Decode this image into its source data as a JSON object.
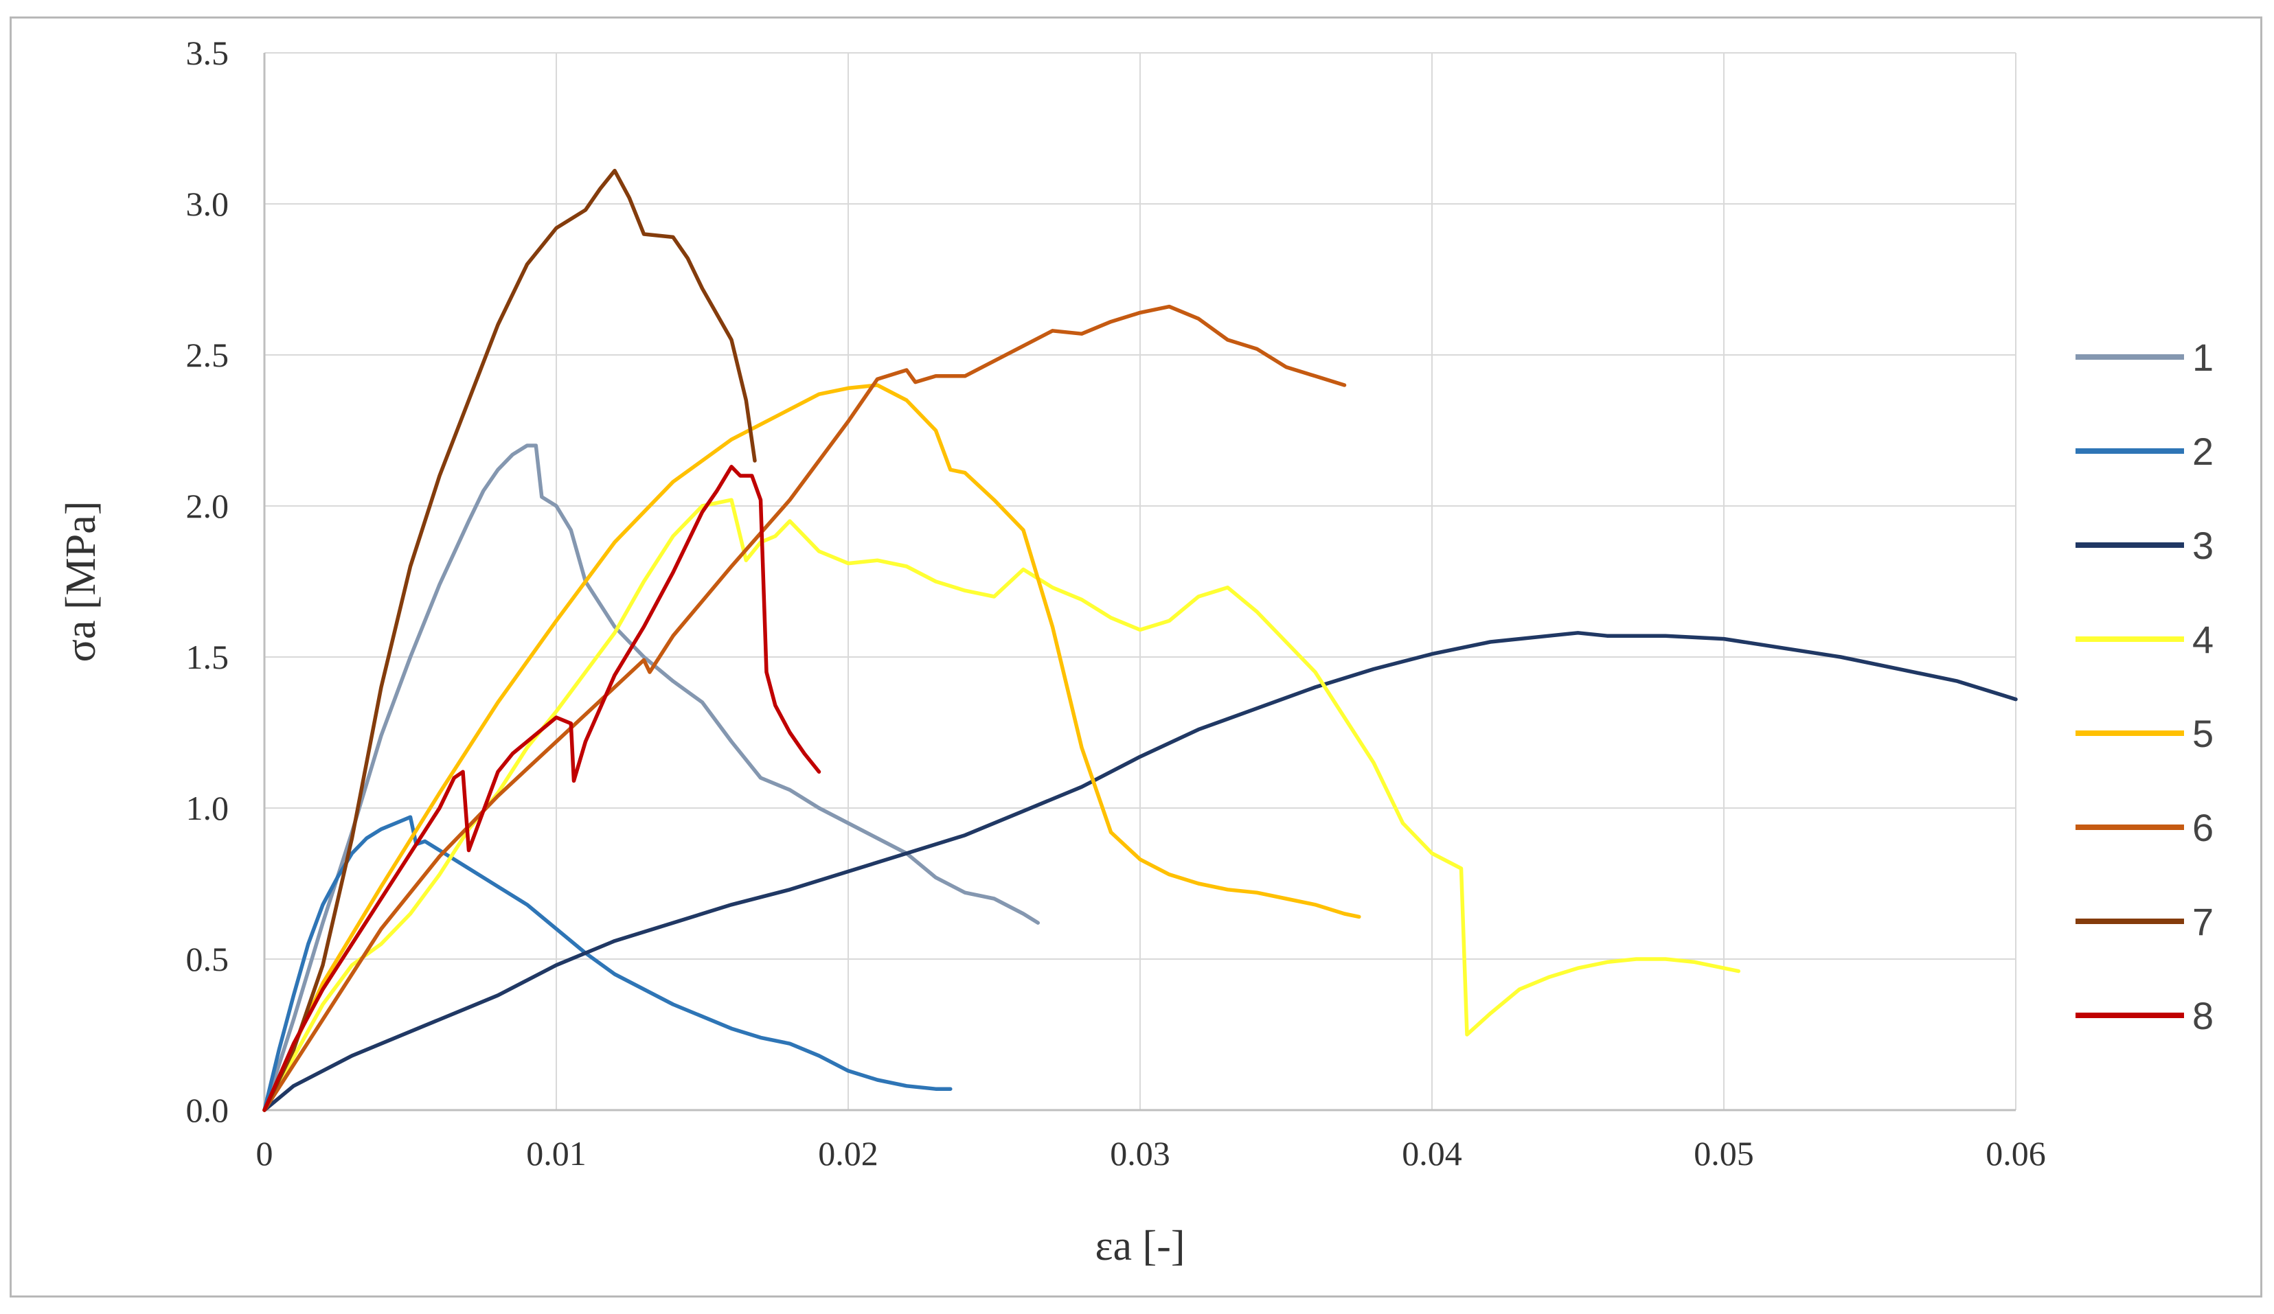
{
  "chart_data": {
    "type": "line",
    "title": "",
    "xlabel": "εa [-]",
    "ylabel": "σa [MPa]",
    "xlim": [
      0,
      0.06
    ],
    "ylim": [
      0,
      3.5
    ],
    "x_ticks": [
      "0",
      "0.01",
      "0.02",
      "0.03",
      "0.04",
      "0.05",
      "0.06"
    ],
    "y_ticks": [
      "0.0",
      "0.5",
      "1.0",
      "1.5",
      "2.0",
      "2.5",
      "3.0",
      "3.5"
    ],
    "x_tick_values": [
      0,
      0.01,
      0.02,
      0.03,
      0.04,
      0.05,
      0.06
    ],
    "y_tick_values": [
      0,
      0.5,
      1.0,
      1.5,
      2.0,
      2.5,
      3.0,
      3.5
    ],
    "grid": true,
    "legend_position": "right",
    "series": [
      {
        "name": "1",
        "color": "#8497b0",
        "x": [
          0,
          0.001,
          0.002,
          0.003,
          0.004,
          0.005,
          0.006,
          0.007,
          0.0075,
          0.008,
          0.0085,
          0.009,
          0.0093,
          0.0095,
          0.01,
          0.0105,
          0.011,
          0.012,
          0.013,
          0.014,
          0.015,
          0.016,
          0.017,
          0.018,
          0.019,
          0.02,
          0.021,
          0.022,
          0.023,
          0.024,
          0.025,
          0.026,
          0.0265
        ],
        "y": [
          0,
          0.3,
          0.62,
          0.92,
          1.24,
          1.5,
          1.74,
          1.95,
          2.05,
          2.12,
          2.17,
          2.2,
          2.2,
          2.03,
          2.0,
          1.92,
          1.75,
          1.6,
          1.5,
          1.42,
          1.35,
          1.22,
          1.1,
          1.06,
          1.0,
          0.95,
          0.9,
          0.85,
          0.77,
          0.72,
          0.7,
          0.65,
          0.62
        ]
      },
      {
        "name": "2",
        "color": "#2e75b6",
        "x": [
          0,
          0.0005,
          0.001,
          0.0015,
          0.002,
          0.0025,
          0.003,
          0.0035,
          0.004,
          0.0045,
          0.005,
          0.0052,
          0.0055,
          0.006,
          0.007,
          0.008,
          0.009,
          0.01,
          0.011,
          0.012,
          0.013,
          0.014,
          0.015,
          0.016,
          0.017,
          0.018,
          0.019,
          0.02,
          0.021,
          0.022,
          0.023,
          0.0235
        ],
        "y": [
          0,
          0.2,
          0.38,
          0.55,
          0.68,
          0.77,
          0.85,
          0.9,
          0.93,
          0.95,
          0.97,
          0.88,
          0.89,
          0.86,
          0.8,
          0.74,
          0.68,
          0.6,
          0.52,
          0.45,
          0.4,
          0.35,
          0.31,
          0.27,
          0.24,
          0.22,
          0.18,
          0.13,
          0.1,
          0.08,
          0.07,
          0.07
        ]
      },
      {
        "name": "3",
        "color": "#203864",
        "x": [
          0,
          0.001,
          0.002,
          0.003,
          0.004,
          0.005,
          0.006,
          0.007,
          0.008,
          0.009,
          0.01,
          0.012,
          0.014,
          0.016,
          0.018,
          0.02,
          0.022,
          0.024,
          0.026,
          0.028,
          0.03,
          0.032,
          0.034,
          0.036,
          0.038,
          0.04,
          0.042,
          0.044,
          0.045,
          0.046,
          0.048,
          0.05,
          0.052,
          0.054,
          0.056,
          0.058,
          0.06
        ],
        "y": [
          0,
          0.08,
          0.13,
          0.18,
          0.22,
          0.26,
          0.3,
          0.34,
          0.38,
          0.43,
          0.48,
          0.56,
          0.62,
          0.68,
          0.73,
          0.79,
          0.85,
          0.91,
          0.99,
          1.07,
          1.17,
          1.26,
          1.33,
          1.4,
          1.46,
          1.51,
          1.55,
          1.57,
          1.58,
          1.57,
          1.57,
          1.56,
          1.53,
          1.5,
          1.46,
          1.42,
          1.36
        ]
      },
      {
        "name": "4",
        "color": "#ffff33",
        "x": [
          0,
          0.002,
          0.003,
          0.004,
          0.005,
          0.006,
          0.007,
          0.008,
          0.009,
          0.01,
          0.011,
          0.012,
          0.013,
          0.014,
          0.015,
          0.016,
          0.0165,
          0.017,
          0.0175,
          0.018,
          0.019,
          0.02,
          0.021,
          0.022,
          0.023,
          0.024,
          0.025,
          0.026,
          0.027,
          0.028,
          0.029,
          0.03,
          0.031,
          0.032,
          0.033,
          0.034,
          0.035,
          0.036,
          0.037,
          0.038,
          0.039,
          0.04,
          0.041,
          0.0412,
          0.042,
          0.043,
          0.044,
          0.045,
          0.046,
          0.047,
          0.048,
          0.049,
          0.05,
          0.0505
        ],
        "y": [
          0,
          0.35,
          0.48,
          0.55,
          0.65,
          0.78,
          0.93,
          1.05,
          1.2,
          1.32,
          1.45,
          1.58,
          1.75,
          1.9,
          2.0,
          2.02,
          1.82,
          1.88,
          1.9,
          1.95,
          1.85,
          1.81,
          1.82,
          1.8,
          1.75,
          1.72,
          1.7,
          1.79,
          1.73,
          1.69,
          1.63,
          1.59,
          1.62,
          1.7,
          1.73,
          1.65,
          1.55,
          1.45,
          1.3,
          1.15,
          0.95,
          0.85,
          0.8,
          0.25,
          0.32,
          0.4,
          0.44,
          0.47,
          0.49,
          0.5,
          0.5,
          0.49,
          0.47,
          0.46
        ]
      },
      {
        "name": "5",
        "color": "#ffc000",
        "x": [
          0,
          0.002,
          0.004,
          0.006,
          0.008,
          0.01,
          0.012,
          0.014,
          0.016,
          0.018,
          0.019,
          0.02,
          0.021,
          0.022,
          0.023,
          0.0235,
          0.024,
          0.025,
          0.026,
          0.027,
          0.028,
          0.029,
          0.03,
          0.031,
          0.032,
          0.033,
          0.034,
          0.035,
          0.036,
          0.037,
          0.0375
        ],
        "y": [
          0,
          0.42,
          0.74,
          1.05,
          1.35,
          1.62,
          1.88,
          2.08,
          2.22,
          2.32,
          2.37,
          2.39,
          2.4,
          2.35,
          2.25,
          2.12,
          2.11,
          2.02,
          1.92,
          1.6,
          1.2,
          0.92,
          0.83,
          0.78,
          0.75,
          0.73,
          0.72,
          0.7,
          0.68,
          0.65,
          0.64
        ]
      },
      {
        "name": "6",
        "color": "#c55a11",
        "x": [
          0,
          0.002,
          0.004,
          0.006,
          0.008,
          0.01,
          0.012,
          0.013,
          0.0132,
          0.014,
          0.016,
          0.018,
          0.02,
          0.021,
          0.022,
          0.0223,
          0.023,
          0.024,
          0.025,
          0.026,
          0.027,
          0.028,
          0.029,
          0.03,
          0.031,
          0.032,
          0.033,
          0.034,
          0.035,
          0.036,
          0.037
        ],
        "y": [
          0,
          0.3,
          0.6,
          0.84,
          1.04,
          1.22,
          1.4,
          1.49,
          1.45,
          1.57,
          1.8,
          2.02,
          2.28,
          2.42,
          2.45,
          2.41,
          2.43,
          2.43,
          2.48,
          2.53,
          2.58,
          2.57,
          2.61,
          2.64,
          2.66,
          2.62,
          2.55,
          2.52,
          2.46,
          2.43,
          2.4
        ]
      },
      {
        "name": "7",
        "color": "#843c0c",
        "x": [
          0,
          0.001,
          0.002,
          0.003,
          0.004,
          0.005,
          0.006,
          0.007,
          0.008,
          0.009,
          0.01,
          0.011,
          0.0115,
          0.012,
          0.0125,
          0.013,
          0.014,
          0.0145,
          0.015,
          0.016,
          0.0165,
          0.0168
        ],
        "y": [
          0,
          0.2,
          0.48,
          0.9,
          1.4,
          1.8,
          2.1,
          2.35,
          2.6,
          2.8,
          2.92,
          2.98,
          3.05,
          3.11,
          3.02,
          2.9,
          2.89,
          2.82,
          2.72,
          2.55,
          2.35,
          2.15
        ]
      },
      {
        "name": "8",
        "color": "#c00000",
        "x": [
          0,
          0.001,
          0.002,
          0.003,
          0.004,
          0.005,
          0.006,
          0.0065,
          0.0068,
          0.007,
          0.008,
          0.0085,
          0.009,
          0.0095,
          0.01,
          0.0105,
          0.0106,
          0.011,
          0.012,
          0.013,
          0.014,
          0.015,
          0.0155,
          0.016,
          0.0163,
          0.0167,
          0.017,
          0.0172,
          0.0175,
          0.018,
          0.0185,
          0.019
        ],
        "y": [
          0,
          0.22,
          0.4,
          0.55,
          0.7,
          0.85,
          1.0,
          1.1,
          1.12,
          0.86,
          1.12,
          1.18,
          1.22,
          1.26,
          1.3,
          1.28,
          1.09,
          1.22,
          1.44,
          1.6,
          1.78,
          1.98,
          2.05,
          2.13,
          2.1,
          2.1,
          2.02,
          1.45,
          1.34,
          1.25,
          1.18,
          1.12
        ]
      }
    ]
  }
}
